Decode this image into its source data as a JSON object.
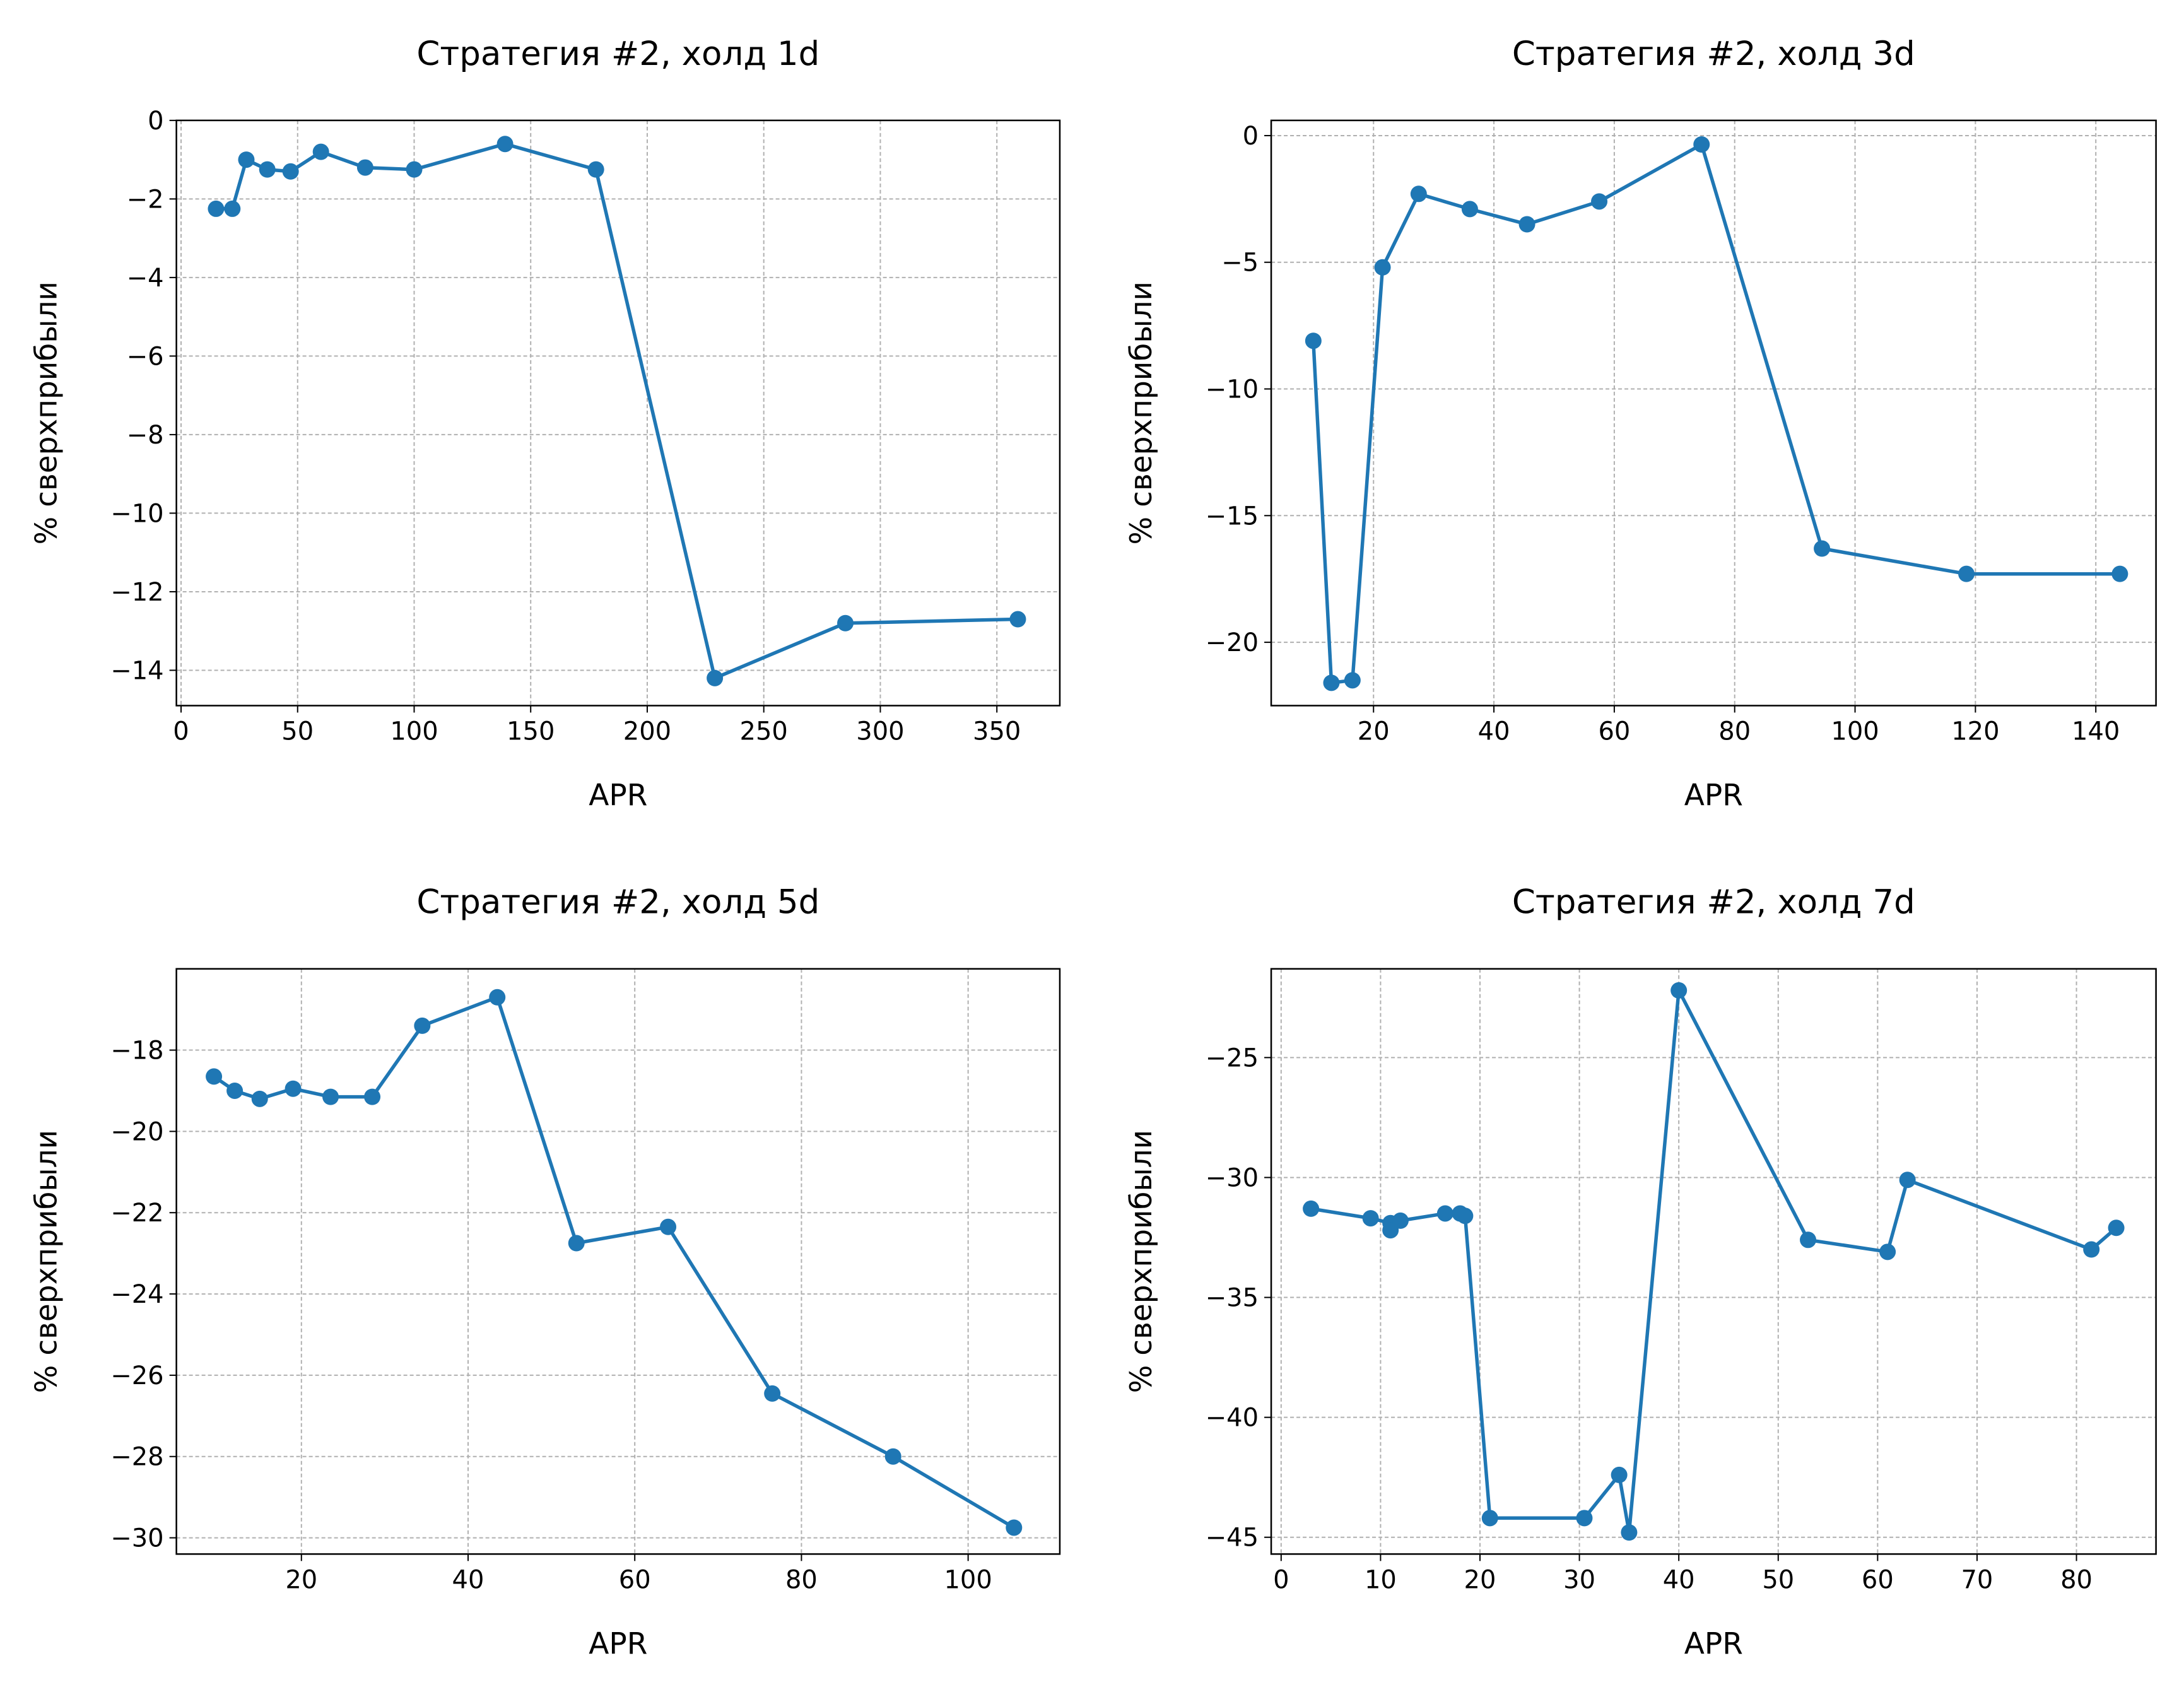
{
  "chart_data": [
    {
      "type": "line",
      "title": "Стратегия #2, холд 1d",
      "xlabel": "APR",
      "ylabel": "% сверхприбыли",
      "xlim": [
        -2,
        377
      ],
      "ylim": [
        -14.9,
        0
      ],
      "xticks": [
        0,
        50,
        100,
        150,
        200,
        250,
        300,
        350
      ],
      "yticks": [
        0,
        -2,
        -4,
        -6,
        -8,
        -10,
        -12,
        -14
      ],
      "grid": true,
      "series": [
        {
          "color": "#1f77b4",
          "x": [
            15,
            22,
            28,
            37,
            47,
            60,
            79,
            100,
            139,
            178,
            229,
            285,
            359
          ],
          "y": [
            -2.25,
            -2.25,
            -1.0,
            -1.25,
            -1.3,
            -0.8,
            -1.2,
            -1.25,
            -0.6,
            -1.25,
            -14.2,
            -12.8,
            -12.7
          ]
        }
      ]
    },
    {
      "type": "line",
      "title": "Стратегия #2, холд 3d",
      "xlabel": "APR",
      "ylabel": "% сверхприбыли",
      "xlim": [
        3,
        150
      ],
      "ylim": [
        -22.5,
        0.6
      ],
      "xticks": [
        20,
        40,
        60,
        80,
        100,
        120,
        140
      ],
      "yticks": [
        0,
        -5,
        -10,
        -15,
        -20
      ],
      "grid": true,
      "series": [
        {
          "color": "#1f77b4",
          "x": [
            10,
            13,
            16.5,
            21.5,
            27.5,
            36,
            45.5,
            57.5,
            74.5,
            94.5,
            118.5,
            144
          ],
          "y": [
            -8.1,
            -21.6,
            -21.5,
            -5.2,
            -2.3,
            -2.9,
            -3.5,
            -2.6,
            -0.35,
            -16.3,
            -17.3,
            -17.3
          ]
        }
      ]
    },
    {
      "type": "line",
      "title": "Стратегия #2, холд 5d",
      "xlabel": "APR",
      "ylabel": "% сверхприбыли",
      "xlim": [
        5,
        111
      ],
      "ylim": [
        -30.4,
        -16.0
      ],
      "xticks": [
        20,
        40,
        60,
        80,
        100
      ],
      "yticks": [
        -18,
        -20,
        -22,
        -24,
        -26,
        -28,
        -30
      ],
      "grid": true,
      "series": [
        {
          "color": "#1f77b4",
          "x": [
            9.5,
            12,
            15,
            19,
            23.5,
            28.5,
            34.5,
            43.5,
            53,
            64,
            76.5,
            91,
            105.5
          ],
          "y": [
            -18.65,
            -19.0,
            -19.2,
            -18.95,
            -19.15,
            -19.15,
            -17.4,
            -16.7,
            -22.75,
            -22.35,
            -26.45,
            -28.0,
            -29.75
          ]
        }
      ]
    },
    {
      "type": "line",
      "title": "Стратегия #2, холд 7d",
      "xlabel": "APR",
      "ylabel": "% сверхприбыли",
      "xlim": [
        -1,
        88
      ],
      "ylim": [
        -45.7,
        -21.3
      ],
      "xticks": [
        0,
        10,
        20,
        30,
        40,
        50,
        60,
        70,
        80
      ],
      "yticks": [
        -25,
        -30,
        -35,
        -40,
        -45
      ],
      "grid": true,
      "series": [
        {
          "color": "#1f77b4",
          "x": [
            3,
            9,
            11,
            11,
            12,
            16.5,
            18,
            18.5,
            21,
            30.5,
            34,
            35,
            40,
            53,
            61,
            63,
            81.5,
            84
          ],
          "y": [
            -31.3,
            -31.7,
            -31.9,
            -32.2,
            -31.8,
            -31.5,
            -31.5,
            -31.6,
            -44.2,
            -44.2,
            -42.4,
            -44.8,
            -22.2,
            -32.6,
            -33.1,
            -30.1,
            -33.0,
            -32.1
          ]
        }
      ]
    }
  ]
}
